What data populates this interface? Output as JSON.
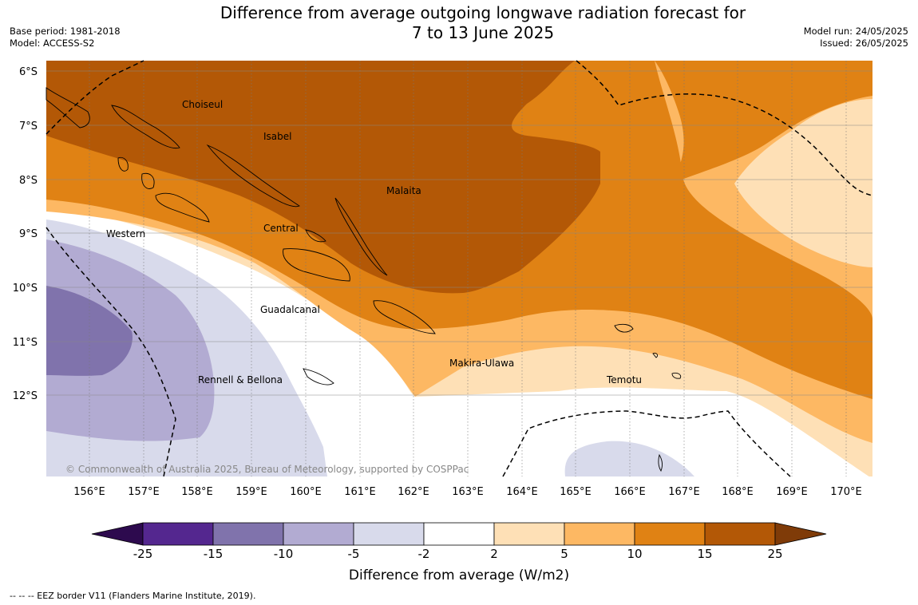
{
  "header": {
    "title_line1": "Difference from average outgoing longwave radiation forecast for",
    "title_line2": "7 to 13 June 2025",
    "base_period": "Base period: 1981-2018",
    "model": "Model: ACCESS-S2",
    "model_run": "Model run: 24/05/2025",
    "issued": "Issued: 26/05/2025"
  },
  "map": {
    "lat_labels": [
      "6°S",
      "7°S",
      "8°S",
      "9°S",
      "10°S",
      "11°S",
      "12°S"
    ],
    "lon_labels": [
      "156°E",
      "157°E",
      "158°E",
      "159°E",
      "160°E",
      "161°E",
      "162°E",
      "163°E",
      "164°E",
      "165°E",
      "166°E",
      "167°E",
      "168°E",
      "169°E",
      "170°E"
    ],
    "places": {
      "choiseul": "Choiseul",
      "isabel": "Isabel",
      "malaita": "Malaita",
      "western": "Western",
      "central": "Central",
      "guadalcanal": "Guadalcanal",
      "makira": "Makira-Ulawa",
      "temotu": "Temotu",
      "rennell": "Rennell & Bellona"
    },
    "copyright": "© Commonwealth of Australia 2025, Bureau of Meteorology, supported by COSPPac"
  },
  "colorbar": {
    "ticks": [
      "-25",
      "-15",
      "-10",
      "-5",
      "-2",
      "2",
      "5",
      "10",
      "15",
      "25"
    ],
    "colors": {
      "below": "#2d0a4e",
      "c1": "#54278f",
      "c2": "#8073ac",
      "c3": "#b2abd2",
      "c4": "#d8daeb",
      "c5": "#ffffff",
      "c6": "#fee0b6",
      "c7": "#fdb863",
      "c8": "#e08214",
      "c9": "#b35806",
      "above": "#7f3b08"
    },
    "label": "Difference from average (W/m2)"
  },
  "footer": {
    "eez_note": "--  --  -- EEZ border V11 (Flanders Marine Institute, 2019)."
  }
}
